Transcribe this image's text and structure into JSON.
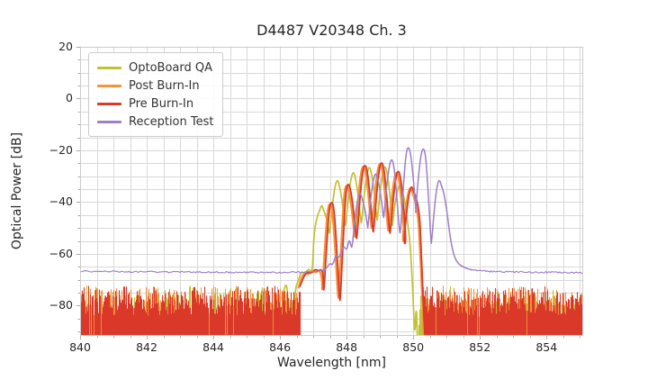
{
  "chart_data": {
    "type": "line",
    "title": "D4487 V20348 Ch. 3",
    "xlabel": "Wavelength [nm]",
    "ylabel": "Optical Power [dB]",
    "xlim": [
      840,
      855.1
    ],
    "ylim": [
      -91.7,
      20
    ],
    "grid": {
      "x_step_nm": 0.5,
      "y_step_db": 5,
      "color": "#d9d9d9",
      "spine_color": "#cccccc",
      "tick_color": "#aaaaaa"
    },
    "legend_position": "upper left",
    "x_ticks": [
      {
        "v": 840,
        "label": "840"
      },
      {
        "v": 842,
        "label": "842"
      },
      {
        "v": 844,
        "label": "844"
      },
      {
        "v": 846,
        "label": "846"
      },
      {
        "v": 848,
        "label": "848"
      },
      {
        "v": 850,
        "label": "850"
      },
      {
        "v": 852,
        "label": "852"
      },
      {
        "v": 854,
        "label": "854"
      }
    ],
    "y_ticks": [
      {
        "v": 20,
        "label": "20"
      },
      {
        "v": 0,
        "label": "0"
      },
      {
        "v": -20,
        "label": "−20"
      },
      {
        "v": -40,
        "label": "−40"
      },
      {
        "v": -60,
        "label": "−60"
      },
      {
        "v": -80,
        "label": "−80"
      }
    ],
    "series": [
      {
        "name": "OptoBoard QA",
        "color": "#bfc232",
        "lw": 1.7,
        "parts": [
          {
            "kind": "band",
            "x0": 840,
            "x1": 846.06,
            "mean": -81,
            "amp": 6.5
          },
          {
            "kind": "trace",
            "pre": [
              [
                846.06,
                -77
              ],
              [
                846.16,
                -71.5
              ],
              [
                846.22,
                -73
              ],
              [
                846.28,
                -88
              ],
              [
                846.33,
                -74
              ],
              [
                846.38,
                -91
              ],
              [
                846.46,
                -73
              ],
              [
                846.55,
                -70.5
              ],
              [
                846.64,
                -66.5
              ],
              [
                846.74,
                -68
              ],
              [
                846.86,
                -65.5
              ],
              [
                846.96,
                -67.5
              ],
              [
                846.99,
                -62
              ]
            ],
            "modes": {
              "hw": 0.23,
              "v_in": -52,
              "v_out": -48,
              "items": [
                [
                  847.25,
                  -40.8
                ],
                [
                  847.72,
                  -31
                ],
                [
                  848.2,
                  -28
                ],
                [
                  848.68,
                  -26
                ],
                [
                  849.15,
                  -25.8
                ],
                [
                  849.6,
                  -32.5
                ]
              ],
              "valleys": [
                -52,
                -49,
                -48,
                -47,
                -49
              ]
            },
            "post": [
              [
                849.9,
                -55
              ],
              [
                849.97,
                -70
              ],
              [
                850.02,
                -85
              ],
              [
                850.05,
                -91.5
              ],
              [
                850.09,
                -79
              ],
              [
                850.12,
                -91.5
              ]
            ]
          },
          {
            "kind": "band",
            "x0": 850.13,
            "x1": 855.1,
            "mean": -82,
            "amp": 6
          }
        ]
      },
      {
        "name": "Post Burn-In",
        "color": "#f5923a",
        "lw": 2.2,
        "parts": [
          {
            "kind": "band",
            "x0": 840,
            "x1": 846.56,
            "mean": -79.5,
            "amp": 6
          },
          {
            "kind": "trace",
            "pre": [
              [
                846.56,
                -73
              ],
              [
                846.64,
                -69
              ],
              [
                846.74,
                -67.5
              ],
              [
                846.88,
                -68
              ],
              [
                846.98,
                -66.3
              ],
              [
                847.08,
                -67.5
              ],
              [
                847.18,
                -65.8
              ],
              [
                847.27,
                -70
              ]
            ],
            "modes": {
              "hw": 0.24,
              "v_in": -76,
              "v_out": -46,
              "items": [
                [
                  847.5,
                  -40
                ],
                [
                  848.0,
                  -33
                ],
                [
                  848.5,
                  -25.6
                ],
                [
                  849.0,
                  -24.6
                ],
                [
                  849.5,
                  -28
                ],
                [
                  849.91,
                  -34
                ]
              ],
              "valleys": [
                -77,
                -53.5,
                -50,
                -51,
                -55
              ]
            },
            "post": [
              [
                850.2,
                -58
              ],
              [
                850.26,
                -74
              ],
              [
                850.3,
                -88
              ],
              [
                850.33,
                -91.5
              ]
            ]
          },
          {
            "kind": "band",
            "x0": 850.28,
            "x1": 855.1,
            "mean": -79.5,
            "amp": 6
          }
        ]
      },
      {
        "name": "Pre Burn-In",
        "color": "#da392a",
        "lw": 1.8,
        "parts": [
          {
            "kind": "band",
            "x0": 840,
            "x1": 846.6,
            "mean": -79,
            "amp": 5
          },
          {
            "kind": "trace",
            "pre": [
              [
                846.6,
                -72.5
              ],
              [
                846.72,
                -68.5
              ],
              [
                846.82,
                -67
              ],
              [
                846.96,
                -67.5
              ],
              [
                847.06,
                -65.8
              ],
              [
                847.16,
                -66.8
              ],
              [
                847.24,
                -65.8
              ],
              [
                847.3,
                -68
              ]
            ],
            "modes": {
              "hw": 0.24,
              "v_in": -77,
              "v_out": -45,
              "items": [
                [
                  847.55,
                  -39.5
                ],
                [
                  848.05,
                  -32.5
                ],
                [
                  848.55,
                  -25.2
                ],
                [
                  849.05,
                  -24.2
                ],
                [
                  849.55,
                  -27.5
                ],
                [
                  849.95,
                  -33.5
                ]
              ],
              "valleys": [
                -78,
                -54,
                -51.5,
                -52,
                -56
              ]
            },
            "post": [
              [
                850.23,
                -56
              ],
              [
                850.28,
                -72
              ],
              [
                850.33,
                -88
              ],
              [
                850.36,
                -91.5
              ]
            ]
          },
          {
            "kind": "band",
            "x0": 850.3,
            "x1": 855.1,
            "mean": -79,
            "amp": 5
          }
        ]
      },
      {
        "name": "Reception Test",
        "color": "#9e7ec7",
        "lw": 1.5,
        "parts": [
          {
            "kind": "noisy",
            "jitter": 0.3,
            "points": [
              [
                840,
                -66.7
              ],
              [
                841.5,
                -66.9
              ],
              [
                843,
                -67.05
              ],
              [
                844.5,
                -67.1
              ],
              [
                846,
                -67.2
              ],
              [
                846.8,
                -67
              ],
              [
                847.32,
                -66.4
              ]
            ]
          },
          {
            "kind": "trace",
            "pre": [
              [
                847.32,
                -66.4
              ],
              [
                847.42,
                -65.2
              ],
              [
                847.5,
                -63.5
              ],
              [
                847.58,
                -64.6
              ],
              [
                847.68,
                -60
              ],
              [
                847.78,
                -62
              ],
              [
                847.9,
                -56.5
              ],
              [
                848.0,
                -59
              ],
              [
                848.08,
                -54
              ],
              [
                848.14,
                -57.5
              ]
            ],
            "modes": {
              "hw": 0.235,
              "v_in": -57.5,
              "v_out": -44,
              "items": [
                [
                  848.4,
                  -36
                ],
                [
                  848.87,
                  -28.5
                ],
                [
                  849.35,
                  -23
                ],
                [
                  849.85,
                  -18.3
                ],
                [
                  850.3,
                  -18.8
                ],
                [
                  850.78,
                  -31
                ]
              ],
              "valleys": [
                -50,
                -46,
                -52,
                -44,
                -56
              ]
            },
            "post": [
              [
                851.1,
                -53
              ],
              [
                851.2,
                -60
              ],
              [
                851.32,
                -63.5
              ],
              [
                851.5,
                -65.2
              ],
              [
                851.75,
                -66.2
              ]
            ]
          },
          {
            "kind": "noisy",
            "jitter": 0.3,
            "points": [
              [
                851.75,
                -66.2
              ],
              [
                852.3,
                -66.8
              ],
              [
                853,
                -67
              ],
              [
                854,
                -67.1
              ],
              [
                855.1,
                -67.3
              ]
            ]
          }
        ]
      }
    ]
  }
}
